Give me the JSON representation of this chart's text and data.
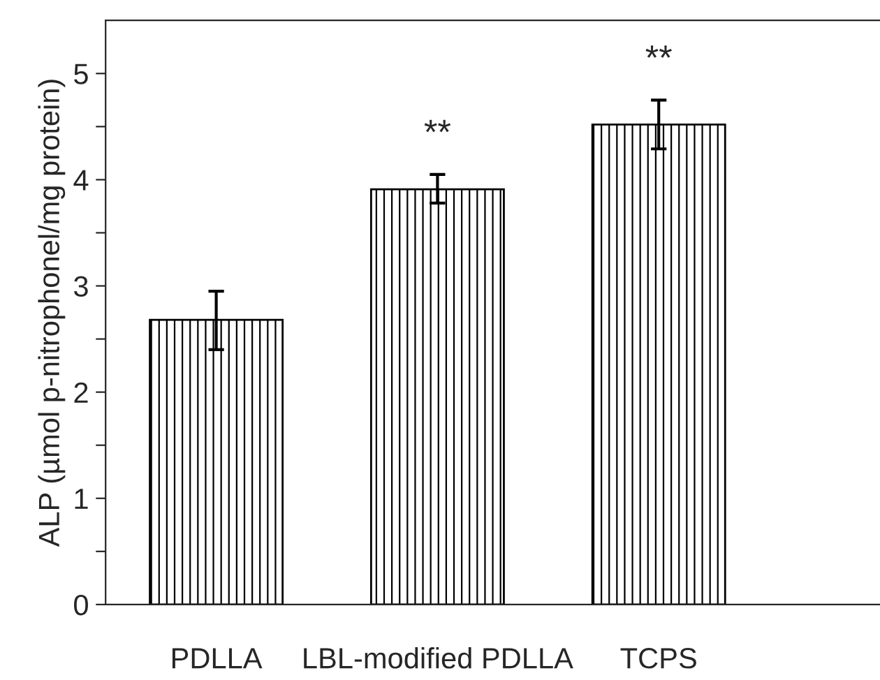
{
  "chart_data": {
    "type": "bar",
    "ylabel": "ALP (µmol p-nitrophonel/mg protein)",
    "categories": [
      "PDLLA",
      "LBL-modified PDLLA",
      "TCPS"
    ],
    "values": [
      2.68,
      3.91,
      4.52
    ],
    "errors": [
      [
        2.4,
        2.95
      ],
      [
        3.78,
        4.05
      ],
      [
        4.29,
        4.75
      ]
    ],
    "color": "#000000",
    "ylim": [
      0,
      5.5
    ],
    "yticks": [
      0,
      {
        "value": 0.5,
        "label": null
      },
      1,
      {
        "value": 1.5,
        "label": null
      },
      2,
      {
        "value": 2.5,
        "label": null
      },
      3,
      {
        "value": 3.5,
        "label": null
      },
      4,
      {
        "value": 4.5,
        "label": null
      },
      5
    ],
    "annotations": [
      "**",
      "**"
    ],
    "grid": false
  }
}
